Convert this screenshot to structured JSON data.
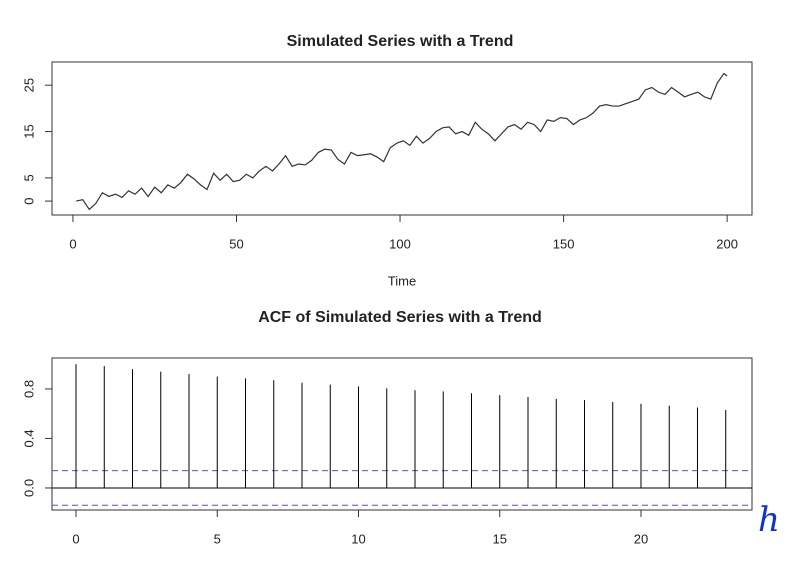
{
  "chart_data": [
    {
      "type": "line",
      "title": "Simulated Series with a Trend",
      "xlabel": "Time",
      "x": [
        1,
        3,
        5,
        7,
        9,
        11,
        13,
        15,
        17,
        19,
        21,
        23,
        25,
        27,
        29,
        31,
        33,
        35,
        37,
        39,
        41,
        43,
        45,
        47,
        49,
        51,
        53,
        55,
        57,
        59,
        61,
        63,
        65,
        67,
        69,
        71,
        73,
        75,
        77,
        79,
        81,
        83,
        85,
        87,
        89,
        91,
        93,
        95,
        97,
        99,
        101,
        103,
        105,
        107,
        109,
        111,
        113,
        115,
        117,
        119,
        121,
        123,
        125,
        127,
        129,
        131,
        133,
        135,
        137,
        139,
        141,
        143,
        145,
        147,
        149,
        151,
        153,
        155,
        157,
        159,
        161,
        163,
        165,
        167,
        169,
        171,
        173,
        175,
        177,
        179,
        181,
        183,
        185,
        187,
        189,
        191,
        193,
        195,
        197,
        199,
        200
      ],
      "series": [
        {
          "color": "#333333",
          "values": [
            0,
            0.3,
            -1.8,
            -0.5,
            1.8,
            1.0,
            1.5,
            0.8,
            2.2,
            1.5,
            2.8,
            1.0,
            3.0,
            1.8,
            3.5,
            2.8,
            4.0,
            5.8,
            4.8,
            3.5,
            2.5,
            6.0,
            4.5,
            5.8,
            4.2,
            4.5,
            5.8,
            5.0,
            6.5,
            7.5,
            6.5,
            8.0,
            9.8,
            7.5,
            8.0,
            7.8,
            8.8,
            10.5,
            11.2,
            11.0,
            9.0,
            8.0,
            10.5,
            9.8,
            10.0,
            10.2,
            9.5,
            8.5,
            11.5,
            12.5,
            13.0,
            12.0,
            14.0,
            12.5,
            13.5,
            15.0,
            15.8,
            16.0,
            14.5,
            15.0,
            14.2,
            17.0,
            15.5,
            14.5,
            13.0,
            14.5,
            16.0,
            16.5,
            15.5,
            17.0,
            16.5,
            15.0,
            17.5,
            17.2,
            18.0,
            17.8,
            16.5,
            17.5,
            18.0,
            19.0,
            20.5,
            20.8,
            20.5,
            20.5,
            21.0,
            21.5,
            22.0,
            24.0,
            24.5,
            23.5,
            23.0,
            24.5,
            23.5,
            22.5,
            23.0,
            23.5,
            22.5,
            22.0,
            25.5,
            27.5,
            27.0
          ]
        }
      ],
      "xlim": [
        -6.4,
        207.6
      ],
      "xticks": [
        0,
        50,
        100,
        150,
        200
      ],
      "ylim": [
        -3,
        30
      ],
      "yticks": [
        0,
        5,
        15,
        25
      ]
    },
    {
      "type": "bar",
      "title": "ACF of Simulated Series with a Trend",
      "x": [
        0,
        1,
        2,
        3,
        4,
        5,
        6,
        7,
        8,
        9,
        10,
        11,
        12,
        13,
        14,
        15,
        16,
        17,
        18,
        19,
        20,
        21,
        22,
        23
      ],
      "series": [
        {
          "color": "#000000",
          "values": [
            1.0,
            0.985,
            0.96,
            0.94,
            0.92,
            0.9,
            0.885,
            0.87,
            0.85,
            0.835,
            0.82,
            0.805,
            0.79,
            0.78,
            0.765,
            0.75,
            0.735,
            0.72,
            0.71,
            0.695,
            0.68,
            0.665,
            0.65,
            0.63
          ]
        }
      ],
      "ci_lines": [
        0.14,
        -0.14
      ],
      "ci_color": "#4d4dff",
      "xlim": [
        -0.85,
        23.93
      ],
      "xticks": [
        0,
        5,
        10,
        15,
        20
      ],
      "ylim": [
        -0.178,
        1.05
      ],
      "yticks": [
        {
          "value": 0,
          "label": "0.0"
        },
        0.4,
        0.8
      ],
      "annotation": "h",
      "annotation_color": "#1030e0"
    }
  ]
}
